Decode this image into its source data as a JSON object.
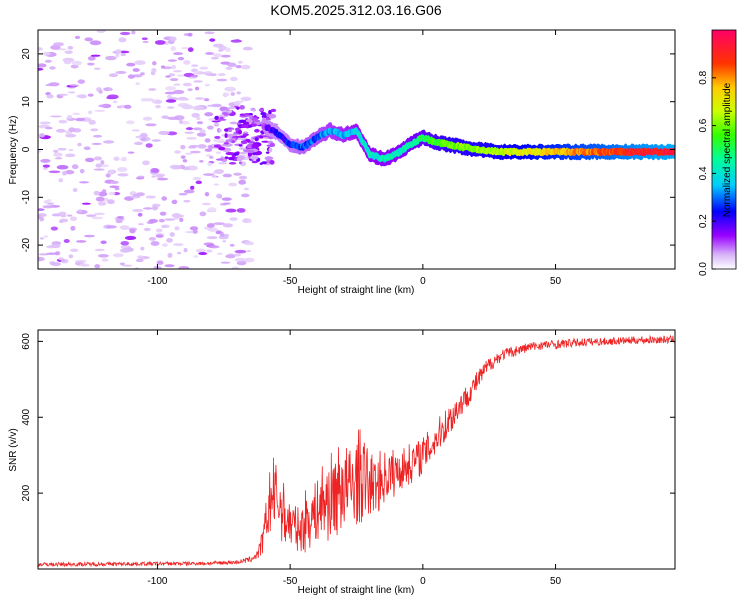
{
  "title": "KOM5.2025.312.03.16.G06",
  "chart_data": [
    {
      "type": "heatmap",
      "xlabel": "Height of straight line (km)",
      "ylabel": "Frequency (Hz)",
      "xlim": [
        -145,
        95
      ],
      "ylim": [
        -25,
        25
      ],
      "xticks": [
        -100,
        -50,
        0,
        50
      ],
      "yticks": [
        -20,
        -10,
        0,
        10,
        20
      ],
      "colorbar": {
        "label": "Normalized spectral amplitude",
        "range": [
          0,
          1
        ],
        "ticks": [
          "0.0",
          "0.2",
          "0.4",
          "0.6",
          "0.8"
        ]
      },
      "ridge": {
        "x": [
          -60,
          -55,
          -50,
          -45,
          -40,
          -35,
          -30,
          -25,
          -20,
          -15,
          -10,
          -5,
          0,
          5,
          10,
          20,
          30,
          40,
          50,
          60,
          70,
          80,
          95
        ],
        "freq_hz": [
          5,
          3.5,
          1,
          0.5,
          2.5,
          4,
          3,
          4,
          -1,
          -2,
          -1,
          1,
          2.5,
          1.5,
          1,
          0,
          -0.5,
          -0.5,
          -0.5,
          -0.5,
          -0.5,
          -0.5,
          -0.5
        ],
        "amplitude": [
          0.15,
          0.2,
          0.25,
          0.28,
          0.3,
          0.33,
          0.35,
          0.38,
          0.4,
          0.42,
          0.42,
          0.45,
          0.5,
          0.55,
          0.6,
          0.62,
          0.65,
          0.7,
          0.75,
          0.8,
          0.85,
          0.9,
          0.95
        ]
      }
    },
    {
      "type": "line",
      "xlabel": "Height of straight line (km)",
      "ylabel": "SNR (v/v)",
      "xlim": [
        -145,
        95
      ],
      "ylim": [
        0,
        630
      ],
      "xticks": [
        -100,
        -50,
        0,
        50
      ],
      "yticks": [
        200,
        400,
        600
      ],
      "series": [
        {
          "name": "SNR",
          "color": "#ee2222",
          "x": [
            -145,
            -120,
            -100,
            -80,
            -70,
            -65,
            -62,
            -60,
            -58,
            -56,
            -54,
            -52,
            -50,
            -48,
            -46,
            -44,
            -42,
            -40,
            -38,
            -36,
            -34,
            -32,
            -30,
            -28,
            -26,
            -24,
            -22,
            -20,
            -18,
            -16,
            -14,
            -12,
            -10,
            -8,
            -6,
            -4,
            -2,
            0,
            2,
            4,
            6,
            8,
            10,
            12,
            14,
            16,
            18,
            20,
            22,
            24,
            26,
            28,
            30,
            35,
            40,
            45,
            50,
            55,
            60,
            70,
            80,
            95
          ],
          "mean": [
            12,
            13,
            14,
            15,
            18,
            25,
            40,
            80,
            170,
            200,
            170,
            140,
            120,
            110,
            100,
            130,
            140,
            150,
            175,
            180,
            195,
            205,
            225,
            210,
            225,
            245,
            235,
            225,
            220,
            235,
            245,
            250,
            255,
            265,
            272,
            282,
            290,
            300,
            315,
            335,
            355,
            375,
            392,
            412,
            432,
            450,
            470,
            490,
            510,
            530,
            545,
            555,
            565,
            575,
            585,
            590,
            592,
            595,
            598,
            600,
            603,
            605
          ],
          "noise": [
            5,
            5,
            5,
            5,
            5,
            8,
            15,
            40,
            90,
            100,
            90,
            80,
            70,
            60,
            55,
            90,
            80,
            80,
            110,
            110,
            120,
            120,
            130,
            110,
            110,
            130,
            110,
            90,
            75,
            80,
            70,
            70,
            60,
            55,
            55,
            55,
            50,
            50,
            50,
            50,
            45,
            45,
            45,
            40,
            35,
            32,
            30,
            28,
            25,
            22,
            20,
            18,
            15,
            14,
            13,
            12,
            12,
            11,
            11,
            10,
            10,
            10
          ]
        }
      ]
    }
  ]
}
